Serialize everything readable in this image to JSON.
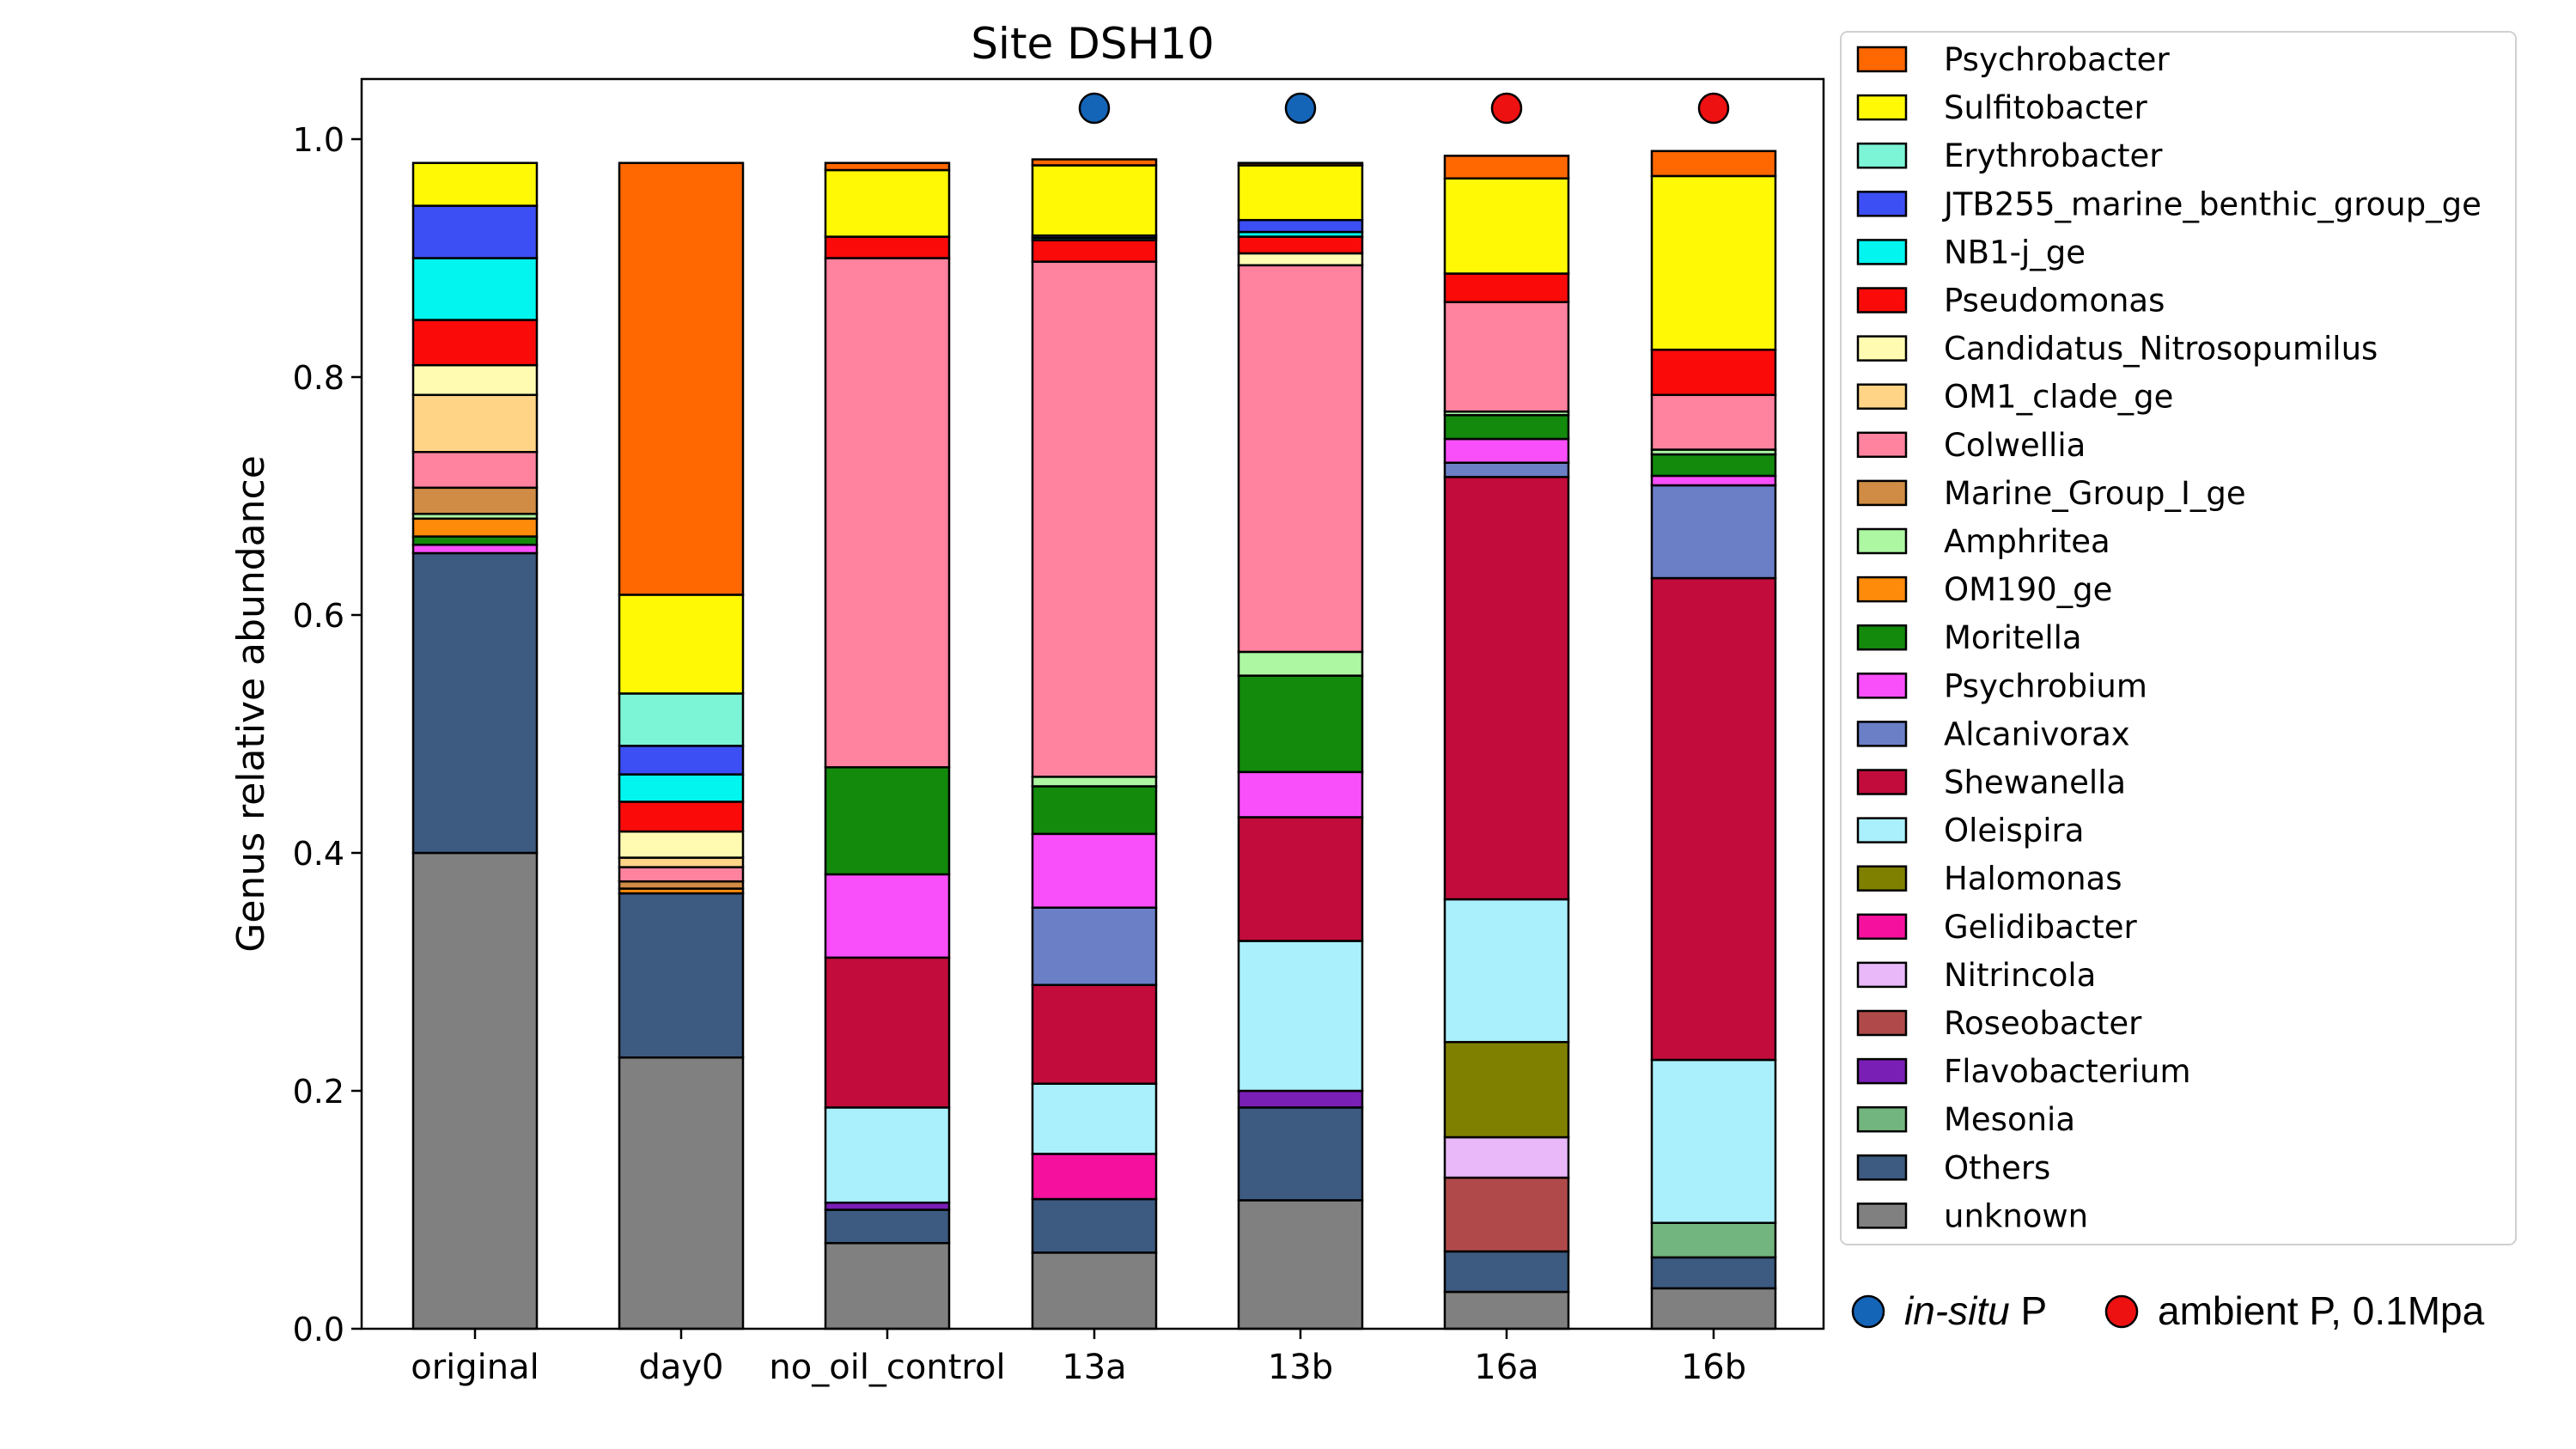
{
  "chart_data": {
    "type": "bar",
    "stacked": true,
    "title": "Site DSH10",
    "ylabel": "Genus relative abundance",
    "xlabel": "",
    "ylim": [
      0,
      1.05
    ],
    "yticks": [
      "0.0",
      "0.2",
      "0.4",
      "0.6",
      "0.8",
      "1.0"
    ],
    "legend_position": "right",
    "categories": [
      "original",
      "day0",
      "no_oil_control",
      "13a",
      "13b",
      "16a",
      "16b"
    ],
    "markers": [
      null,
      null,
      null,
      "in-situ",
      "in-situ",
      "ambient",
      "ambient"
    ],
    "marker_legend": [
      {
        "key": "in-situ",
        "label_italic": "in-situ",
        "label_rest": " P",
        "color": "#1465b8"
      },
      {
        "key": "ambient",
        "label_italic": "",
        "label_rest": "ambient P, 0.1Mpa",
        "color": "#ee1111"
      }
    ],
    "series": [
      {
        "name": "unknown",
        "color": "#808080",
        "values": [
          0.4,
          0.228,
          0.072,
          0.064,
          0.108,
          0.031,
          0.034
        ]
      },
      {
        "name": "Others",
        "color": "#3d5a80",
        "values": [
          0.252,
          0.138,
          0.028,
          0.045,
          0.078,
          0.034,
          0.026
        ]
      },
      {
        "name": "Mesonia",
        "color": "#72b57e",
        "values": [
          0,
          0,
          0,
          0,
          0,
          0,
          0.029
        ]
      },
      {
        "name": "Flavobacterium",
        "color": "#7a1fb5",
        "values": [
          0,
          0,
          0.006,
          0,
          0.014,
          0,
          0
        ]
      },
      {
        "name": "Roseobacter",
        "color": "#b04a4a",
        "values": [
          0,
          0,
          0,
          0,
          0,
          0.062,
          0
        ]
      },
      {
        "name": "Nitrincola",
        "color": "#e8b8f8",
        "values": [
          0,
          0,
          0,
          0,
          0,
          0.034,
          0
        ]
      },
      {
        "name": "Gelidibacter",
        "color": "#f5119e",
        "values": [
          0,
          0,
          0,
          0.038,
          0,
          0,
          0
        ]
      },
      {
        "name": "Halomonas",
        "color": "#808000",
        "values": [
          0,
          0,
          0,
          0,
          0,
          0.08,
          0
        ]
      },
      {
        "name": "Oleispira",
        "color": "#aaf0fc",
        "values": [
          0,
          0,
          0.08,
          0.059,
          0.126,
          0.12,
          0.137
        ]
      },
      {
        "name": "Shewanella",
        "color": "#c20c3c",
        "values": [
          0,
          0,
          0.126,
          0.083,
          0.104,
          0.355,
          0.405
        ]
      },
      {
        "name": "Alcanivorax",
        "color": "#6b7fc7",
        "values": [
          0,
          0,
          0,
          0.065,
          0,
          0.012,
          0.078
        ]
      },
      {
        "name": "Psychrobium",
        "color": "#f94ffa",
        "values": [
          0.007,
          0,
          0.07,
          0.062,
          0.038,
          0.02,
          0.008
        ]
      },
      {
        "name": "Moritella",
        "color": "#138a0c",
        "values": [
          0.007,
          0,
          0.09,
          0.04,
          0.081,
          0.02,
          0.018
        ]
      },
      {
        "name": "OM190_ge",
        "color": "#ff8b0a",
        "values": [
          0.015,
          0.004,
          0,
          0,
          0,
          0,
          0
        ]
      },
      {
        "name": "Amphritea",
        "color": "#adf6a2",
        "values": [
          0.004,
          0,
          0,
          0.008,
          0.02,
          0.003,
          0.004
        ]
      },
      {
        "name": "Marine_Group_I_ge",
        "color": "#d08c44",
        "values": [
          0.022,
          0.006,
          0,
          0,
          0,
          0,
          0
        ]
      },
      {
        "name": "Colwellia",
        "color": "#ff829f",
        "values": [
          0.03,
          0.012,
          0.428,
          0.433,
          0.325,
          0.092,
          0.046
        ]
      },
      {
        "name": "OM1_clade_ge",
        "color": "#ffd486",
        "values": [
          0.048,
          0.008,
          0,
          0,
          0,
          0,
          0
        ]
      },
      {
        "name": "Candidatus_Nitrosopumilus",
        "color": "#fffcb2",
        "values": [
          0.025,
          0.022,
          0,
          0,
          0.01,
          0,
          0
        ]
      },
      {
        "name": "Pseudomonas",
        "color": "#fb0a0a",
        "values": [
          0.038,
          0.025,
          0.018,
          0.018,
          0.014,
          0.024,
          0.038
        ]
      },
      {
        "name": "NB1-j_ge",
        "color": "#02f5ef",
        "values": [
          0.052,
          0.023,
          0,
          0.002,
          0.004,
          0,
          0
        ]
      },
      {
        "name": "JTB255_marine_benthic_group_ge",
        "color": "#3c4ff5",
        "values": [
          0.044,
          0.024,
          0,
          0.002,
          0.01,
          0,
          0
        ]
      },
      {
        "name": "Erythrobacter",
        "color": "#7cf4d6",
        "values": [
          0,
          0.044,
          0,
          0,
          0,
          0,
          0
        ]
      },
      {
        "name": "Sulfitobacter",
        "color": "#fff905",
        "values": [
          0.036,
          0.083,
          0.056,
          0.059,
          0.046,
          0.08,
          0.146
        ]
      },
      {
        "name": "Psychrobacter",
        "color": "#ff6700",
        "values": [
          0,
          0.363,
          0.006,
          0.005,
          0.002,
          0.019,
          0.021
        ]
      }
    ]
  }
}
